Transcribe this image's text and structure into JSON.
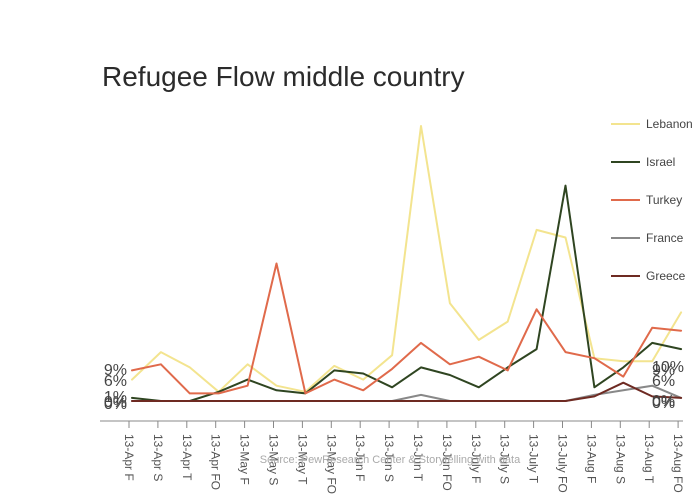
{
  "chart_data": {
    "type": "line",
    "title": "Refugee Flow middle country",
    "source": "Source: PewResearch Center & Storytelling with data",
    "categories": [
      "13-Apr F",
      "13-Apr S",
      "13-Apr T",
      "13-Apr FO",
      "13-May F",
      "13-May S",
      "13-May T",
      "13-May FO",
      "13-Jun F",
      "13-Jun S",
      "13-Jun T",
      "13-Jun FO",
      "13-July F",
      "13-July S",
      "13-July T",
      "13-July FO",
      "13-Aug F",
      "13-Aug S",
      "13-Aug T",
      "13-Aug FO"
    ],
    "series": [
      {
        "name": "Lebanon",
        "color": "#f3e48f",
        "values": [
          7.0,
          16.0,
          11.0,
          3.0,
          12.0,
          5.0,
          3.0,
          11.5,
          7.0,
          15.0,
          90.0,
          32.0,
          20.0,
          26.0,
          56.0,
          53.5,
          14.0,
          13.0,
          13.0,
          29.0
        ]
      },
      {
        "name": "Israel",
        "color": "#2f4521",
        "values": [
          1.0,
          0.0,
          0.0,
          3.0,
          7.0,
          3.5,
          2.5,
          10.0,
          9.0,
          4.5,
          11.0,
          8.5,
          4.5,
          11.0,
          17.0,
          70.5,
          4.5,
          11.0,
          19.0,
          17.0
        ]
      },
      {
        "name": "Turkey",
        "color": "#e06a4b",
        "values": [
          10.0,
          12.0,
          2.5,
          2.5,
          5.0,
          45.0,
          2.5,
          7.0,
          3.5,
          10.5,
          19.0,
          12.0,
          14.5,
          10.0,
          30.0,
          16.0,
          14.0,
          8.0,
          24.0,
          23.0
        ]
      },
      {
        "name": "France",
        "color": "#888888",
        "values": [
          0.0,
          0.0,
          0.0,
          0.0,
          0.0,
          0.0,
          0.0,
          0.0,
          0.0,
          0.0,
          2.0,
          0.0,
          0.0,
          0.0,
          0.0,
          0.0,
          2.0,
          3.5,
          5.0,
          1.0
        ]
      },
      {
        "name": "Greece",
        "color": "#6e2a22",
        "values": [
          0.0,
          0.0,
          0.0,
          0.0,
          0.0,
          0.0,
          0.0,
          0.0,
          0.0,
          0.0,
          0.0,
          0.0,
          0.0,
          0.0,
          0.0,
          0.0,
          1.5,
          6.0,
          1.5,
          1.0
        ]
      }
    ],
    "ylim": [
      0,
      95
    ],
    "start_labels": [
      "9%",
      "6%",
      "1%",
      "0%",
      "0%"
    ],
    "end_labels": [
      "10%",
      "9%",
      "6%",
      "0%",
      "0%"
    ],
    "legend_position": "right",
    "grid": false
  }
}
